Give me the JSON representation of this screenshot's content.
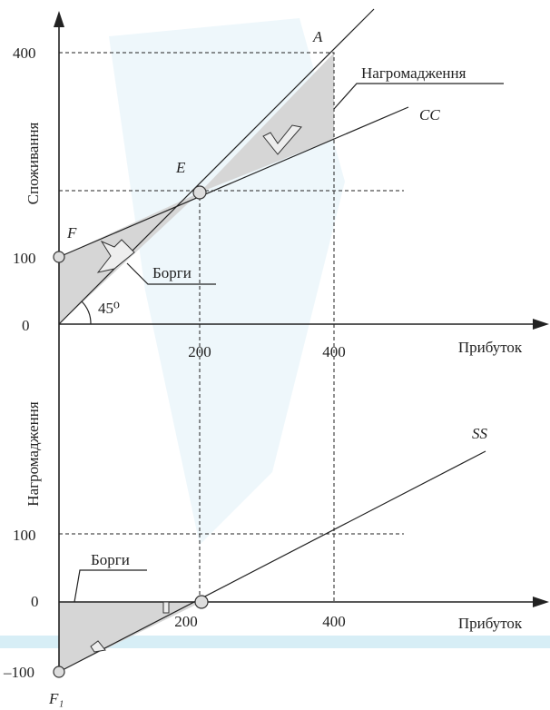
{
  "top": {
    "y_label": "Споживання",
    "x_label": "Прибуток",
    "y_ticks": [
      "400",
      "100",
      "0"
    ],
    "x_ticks": [
      "200",
      "400"
    ],
    "labels": {
      "a": "A",
      "saving": "Нагромадження",
      "cc": "CC",
      "e": "E",
      "f": "F",
      "debt": "Борги",
      "angle": "45⁰"
    }
  },
  "bottom": {
    "y_label": "Нагромадження",
    "x_label": "Прибуток",
    "y_ticks": [
      "100",
      "0",
      "–100"
    ],
    "x_ticks": [
      "200",
      "400"
    ],
    "labels": {
      "ss": "SS",
      "debt": "Борги",
      "f1": "F₁"
    }
  }
}
